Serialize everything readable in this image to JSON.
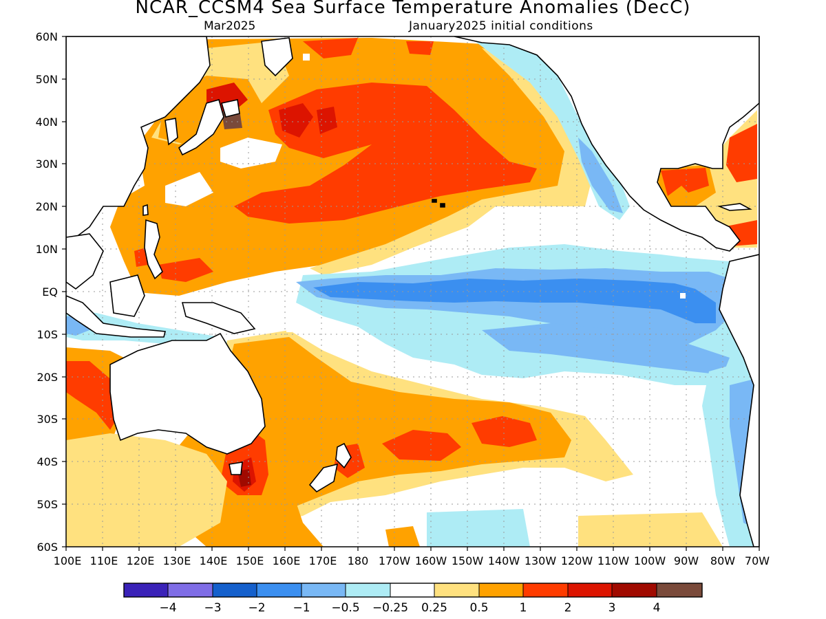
{
  "title": "NCAR_CCSM4 Sea Surface Temperature Anomalies (DecC)",
  "subtitle_left": "Mar2025",
  "subtitle_right": "January2025 initial conditions",
  "lat_labels": [
    "60N",
    "50N",
    "40N",
    "30N",
    "20N",
    "10N",
    "EQ",
    "10S",
    "20S",
    "30S",
    "40S",
    "50S",
    "60S"
  ],
  "lon_labels": [
    "100E",
    "110E",
    "120E",
    "130E",
    "140E",
    "150E",
    "160E",
    "170E",
    "180",
    "170W",
    "160W",
    "150W",
    "140W",
    "130W",
    "120W",
    "110W",
    "100W",
    "90W",
    "80W",
    "70W"
  ],
  "colorbar": {
    "colors": [
      "#3a22b8",
      "#7f6de6",
      "#1560cc",
      "#3b8ff0",
      "#79b8f5",
      "#aeecf5",
      "#ffffff",
      "#ffe17f",
      "#ffa200",
      "#ff3c00",
      "#dc1400",
      "#a00a00",
      "#7a4a3a"
    ],
    "labels": [
      "−4",
      "−3",
      "−2",
      "−1",
      "−0.5",
      "−0.25",
      "0.25",
      "0.5",
      "1",
      "2",
      "3",
      "4"
    ]
  },
  "fill_colors": {
    "light_blue": "#aeecf5",
    "blue": "#79b8f5",
    "mid_blue": "#3b8ff0",
    "yellow": "#ffe17f",
    "orange": "#ffa200",
    "red_orange": "#ff3c00",
    "red": "#dc1400",
    "dark_red": "#a00a00",
    "brown": "#7a4a3a",
    "land": "#ffffff",
    "coast": "#000000",
    "grid": "#9a9a9a"
  }
}
